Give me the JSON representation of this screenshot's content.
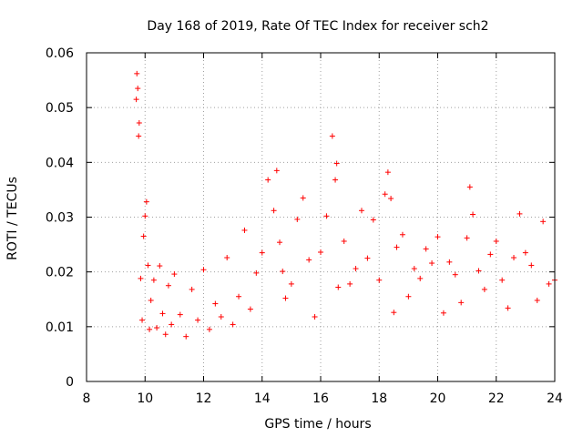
{
  "chart_data": {
    "type": "scatter",
    "title": "Day 168 of 2019, Rate Of TEC Index for receiver sch2",
    "xlabel": "GPS time / hours",
    "ylabel": "ROTI / TECUs",
    "xlim": [
      8,
      24
    ],
    "ylim": [
      0,
      0.06
    ],
    "xticks": [
      "8",
      "10",
      "12",
      "14",
      "16",
      "18",
      "20",
      "22",
      "24"
    ],
    "yticks": [
      "0",
      "0.01",
      "0.02",
      "0.03",
      "0.04",
      "0.05",
      "0.06"
    ],
    "grid": true,
    "marker": "+",
    "color": "#ff0000",
    "series": [
      {
        "name": "ROTI sch2",
        "x": [
          9.7,
          9.72,
          9.75,
          9.78,
          9.8,
          9.85,
          9.9,
          9.95,
          10.0,
          10.05,
          10.1,
          10.15,
          10.2,
          10.3,
          10.4,
          10.5,
          10.6,
          10.7,
          10.8,
          10.9,
          11.0,
          11.2,
          11.4,
          11.6,
          11.8,
          12.0,
          12.2,
          12.4,
          12.6,
          12.8,
          13.0,
          13.2,
          13.4,
          13.6,
          13.8,
          14.0,
          14.2,
          14.4,
          14.5,
          14.6,
          14.7,
          14.8,
          15.0,
          15.2,
          15.4,
          15.6,
          15.8,
          16.0,
          16.2,
          16.4,
          16.5,
          16.55,
          16.6,
          16.8,
          17.0,
          17.2,
          17.4,
          17.6,
          17.8,
          18.0,
          18.2,
          18.3,
          18.4,
          18.5,
          18.6,
          18.8,
          19.0,
          19.2,
          19.4,
          19.6,
          19.8,
          20.0,
          20.2,
          20.4,
          20.6,
          20.8,
          21.0,
          21.1,
          21.2,
          21.4,
          21.6,
          21.8,
          22.0,
          22.2,
          22.4,
          22.6,
          22.8,
          23.0,
          23.2,
          23.4,
          23.6,
          23.8,
          24.0
        ],
        "y": [
          0.0515,
          0.0562,
          0.0535,
          0.0448,
          0.0472,
          0.0188,
          0.0112,
          0.0265,
          0.0302,
          0.0328,
          0.0212,
          0.0095,
          0.0148,
          0.0185,
          0.0098,
          0.0211,
          0.0124,
          0.0086,
          0.0175,
          0.0104,
          0.0196,
          0.0122,
          0.0082,
          0.0168,
          0.0112,
          0.0204,
          0.0095,
          0.0142,
          0.0118,
          0.0226,
          0.0104,
          0.0155,
          0.0276,
          0.0132,
          0.0198,
          0.0235,
          0.0368,
          0.0312,
          0.0385,
          0.0254,
          0.0201,
          0.0152,
          0.0178,
          0.0296,
          0.0335,
          0.0222,
          0.0118,
          0.0236,
          0.0302,
          0.0448,
          0.0368,
          0.0398,
          0.0172,
          0.0256,
          0.0178,
          0.0206,
          0.0312,
          0.0225,
          0.0295,
          0.0185,
          0.0342,
          0.0382,
          0.0334,
          0.0126,
          0.0245,
          0.0268,
          0.0155,
          0.0206,
          0.0188,
          0.0242,
          0.0216,
          0.0264,
          0.0125,
          0.0218,
          0.0195,
          0.0144,
          0.0262,
          0.0355,
          0.0305,
          0.0202,
          0.0168,
          0.0232,
          0.0256,
          0.0185,
          0.0134,
          0.0226,
          0.0306,
          0.0235,
          0.0212,
          0.0148,
          0.0292,
          0.0178,
          0.0185
        ]
      }
    ]
  }
}
